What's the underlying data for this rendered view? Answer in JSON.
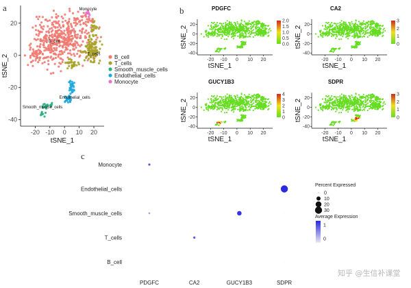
{
  "panel_labels": {
    "a": "a",
    "b": "b",
    "c": "c"
  },
  "watermark": "知乎 @生信补课堂",
  "colors": {
    "B_cell": "#F07A72",
    "T_cells": "#A8A22A",
    "Smooth_muscle_cells": "#2BB07F",
    "Endothelial_cells": "#1FA8DC",
    "Monocyte": "#E872D0",
    "feature_low": "#66DD22",
    "feature_mid": "#F0E020",
    "feature_high": "#D02A1A",
    "dot_low": "#E8E8F4",
    "dot_high": "#2A2AE0"
  },
  "chart_data": [
    {
      "id": "tsne",
      "type": "scatter",
      "xlabel": "tSNE_1",
      "ylabel": "tSNE_2",
      "xlim": [
        -30,
        27
      ],
      "ylim": [
        -44,
        31
      ],
      "xticks": [
        -20,
        -10,
        0,
        10,
        20
      ],
      "xtick_labels": [
        "-20",
        "-10",
        "0",
        "10",
        "20"
      ],
      "yticks": [
        -40,
        -20,
        0,
        20
      ],
      "ytick_labels": [
        "-40",
        "-20",
        "0",
        "20"
      ],
      "legend": [
        "B_cell",
        "T_cells",
        "Smooth_muscle_cells",
        "Endothelial_cells",
        "Monocyte"
      ],
      "cluster_labels": [
        {
          "text": "Monocyte",
          "x": 16,
          "y": 28
        },
        {
          "text": "B_cell",
          "x": -7,
          "y": 8
        },
        {
          "text": "T_cells",
          "x": 20,
          "y": 0
        },
        {
          "text": "Endothelial_cells",
          "x": 7,
          "y": -27
        },
        {
          "text": "Smooth_muscle_cells",
          "x": -15,
          "y": -33
        }
      ],
      "clusters": [
        {
          "name": "B_cell",
          "color": "#F07A72",
          "regions": [
            {
              "cx": -2,
              "cy": 10,
              "rx": 20,
              "ry": 15,
              "n": 420
            },
            {
              "cx": -18,
              "cy": 0,
              "rx": 7,
              "ry": 6,
              "n": 40
            },
            {
              "cx": 14,
              "cy": 22,
              "rx": 6,
              "ry": 6,
              "n": 30
            }
          ]
        },
        {
          "name": "T_cells",
          "color": "#A8A22A",
          "regions": [
            {
              "cx": 18,
              "cy": 3,
              "rx": 6,
              "ry": 8,
              "n": 110
            },
            {
              "cx": 5,
              "cy": -5,
              "rx": 4,
              "ry": 3,
              "n": 30
            },
            {
              "cx": 20,
              "cy": 17,
              "rx": 3,
              "ry": 4,
              "n": 20
            }
          ]
        },
        {
          "name": "Endothelial_cells",
          "color": "#1FA8DC",
          "regions": [
            {
              "cx": 5,
              "cy": -20,
              "rx": 2,
              "ry": 4,
              "n": 30
            },
            {
              "cx": 3,
              "cy": -27,
              "rx": 3,
              "ry": 3,
              "n": 25
            }
          ]
        },
        {
          "name": "Smooth_muscle_cells",
          "color": "#2BB07F",
          "regions": [
            {
              "cx": -13,
              "cy": -31,
              "rx": 3,
              "ry": 2,
              "n": 12
            },
            {
              "cx": -15,
              "cy": -37,
              "rx": 2,
              "ry": 2,
              "n": 8
            },
            {
              "cx": -9,
              "cy": -31,
              "rx": 1.5,
              "ry": 2,
              "n": 6
            }
          ]
        },
        {
          "name": "Monocyte",
          "color": "#E872D0",
          "regions": [
            {
              "cx": 16,
              "cy": 26,
              "rx": 1.5,
              "ry": 2,
              "n": 10
            }
          ]
        }
      ]
    },
    {
      "id": "feature_plots",
      "type": "scatter",
      "xlabel": "tSNE_1",
      "ylabel": "tSNE_2",
      "xlim": [
        -30,
        27
      ],
      "ylim": [
        -44,
        31
      ],
      "xticks": [
        -20,
        -10,
        0,
        10,
        20
      ],
      "xtick_labels": [
        "-20",
        "-10",
        "0",
        "10",
        "20"
      ],
      "yticks": [
        -40,
        -20,
        0,
        20
      ],
      "ytick_labels": [
        "-40",
        "-20",
        "0",
        "20"
      ],
      "panels": [
        {
          "gene": "PDGFC",
          "colorbar_max": 2.0,
          "colorbar_ticks": [
            "2.0",
            "1.5",
            "1.0",
            "0.5",
            "0.0"
          ],
          "hot_regions": []
        },
        {
          "gene": "CA2",
          "colorbar_max": 3,
          "colorbar_ticks": [
            "3",
            "2",
            "1",
            "0"
          ],
          "hot_regions": []
        },
        {
          "gene": "GUCY1B3",
          "colorbar_max": 4,
          "colorbar_ticks": [
            "4",
            "3",
            "2",
            "1",
            "0"
          ],
          "hot_regions": [
            {
              "cx": -14,
              "cy": -33,
              "rx": 3,
              "ry": 3
            }
          ]
        },
        {
          "gene": "SDPR",
          "colorbar_max": 3,
          "colorbar_ticks": [
            "3",
            "2",
            "1",
            "0"
          ],
          "hot_regions": [
            {
              "cx": 4,
              "cy": -24,
              "rx": 3,
              "ry": 5
            }
          ]
        }
      ]
    },
    {
      "id": "dotplot",
      "type": "scatter",
      "x_categories": [
        "PDGFC",
        "CA2",
        "GUCY1B3",
        "SDPR"
      ],
      "y_categories": [
        "B_cell",
        "T_cells",
        "Smooth_muscle_cells",
        "Endothelial_cells",
        "Monocyte"
      ],
      "points": [
        {
          "x": "PDGFC",
          "y": "Monocyte",
          "pct": 3,
          "avg": 1.2
        },
        {
          "x": "PDGFC",
          "y": "Smooth_muscle_cells",
          "pct": 2,
          "avg": 0.6
        },
        {
          "x": "CA2",
          "y": "T_cells",
          "pct": 3,
          "avg": 1.2
        },
        {
          "x": "GUCY1B3",
          "y": "Smooth_muscle_cells",
          "pct": 12,
          "avg": 1.5
        },
        {
          "x": "SDPR",
          "y": "Endothelial_cells",
          "pct": 30,
          "avg": 1.6
        },
        {
          "x": "PDGFC",
          "y": "B_cell",
          "pct": 0,
          "avg": 0
        },
        {
          "x": "PDGFC",
          "y": "T_cells",
          "pct": 0,
          "avg": 0
        },
        {
          "x": "PDGFC",
          "y": "Endothelial_cells",
          "pct": 0,
          "avg": 0
        },
        {
          "x": "CA2",
          "y": "B_cell",
          "pct": 0,
          "avg": 0
        },
        {
          "x": "CA2",
          "y": "Smooth_muscle_cells",
          "pct": 0,
          "avg": 0
        },
        {
          "x": "CA2",
          "y": "Endothelial_cells",
          "pct": 0,
          "avg": 0
        },
        {
          "x": "CA2",
          "y": "Monocyte",
          "pct": 0,
          "avg": 0
        },
        {
          "x": "GUCY1B3",
          "y": "B_cell",
          "pct": 0,
          "avg": 0
        },
        {
          "x": "GUCY1B3",
          "y": "T_cells",
          "pct": 0,
          "avg": 0
        },
        {
          "x": "GUCY1B3",
          "y": "Endothelial_cells",
          "pct": 0,
          "avg": 0
        },
        {
          "x": "GUCY1B3",
          "y": "Monocyte",
          "pct": 0,
          "avg": 0
        },
        {
          "x": "SDPR",
          "y": "B_cell",
          "pct": 0,
          "avg": 0
        },
        {
          "x": "SDPR",
          "y": "T_cells",
          "pct": 0,
          "avg": 0
        },
        {
          "x": "SDPR",
          "y": "Smooth_muscle_cells",
          "pct": 0,
          "avg": 0
        },
        {
          "x": "SDPR",
          "y": "Monocyte",
          "pct": 0,
          "avg": 0
        }
      ],
      "legend": {
        "size_title": "Percent Expressed",
        "size_values": [
          0,
          10,
          20,
          30
        ],
        "size_labels": [
          "0",
          "10",
          "20",
          "30"
        ],
        "color_title": "Average Expression",
        "color_ticks": [
          1,
          0
        ],
        "color_tick_labels": [
          "1",
          "0"
        ]
      }
    }
  ]
}
